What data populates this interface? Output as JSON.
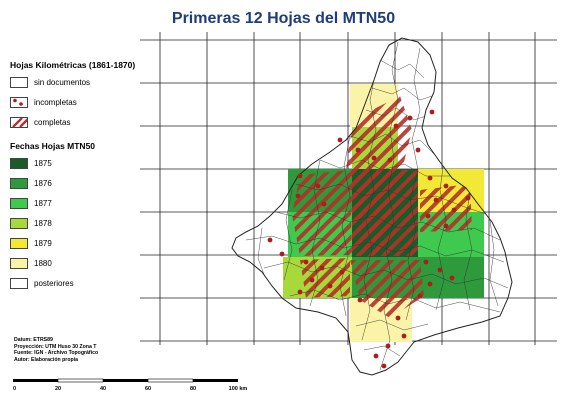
{
  "title": "Primeras 12 Hojas del MTN50",
  "legend_kilometricas": {
    "heading": "Hojas Kilométricas (1861-1870)",
    "items": [
      {
        "label": "sin documentos",
        "symbol": "empty"
      },
      {
        "label": "incompletas",
        "symbol": "dots"
      },
      {
        "label": "completas",
        "symbol": "hatch"
      }
    ]
  },
  "legend_fechas": {
    "heading": "Fechas Hojas MTN50",
    "items": [
      {
        "label": "1875",
        "color": "#1a5c28"
      },
      {
        "label": "1876",
        "color": "#2e9a3c"
      },
      {
        "label": "1877",
        "color": "#3fc94f"
      },
      {
        "label": "1878",
        "color": "#a8d93a"
      },
      {
        "label": "1879",
        "color": "#f2e836"
      },
      {
        "label": "1880",
        "color": "#fbf4a8"
      },
      {
        "label": "posteriores",
        "color": "#ffffff"
      }
    ]
  },
  "credits": [
    "Datum: ETRS89",
    "Proyección: UTM Huso 30 Zona T",
    "Fuente: IGN - Archivo Topográfico",
    "Autor: Elaboración propia"
  ],
  "scale_bar": {
    "ticks": [
      "0",
      "20",
      "40",
      "60",
      "80",
      "100 km"
    ]
  },
  "colors": {
    "hatch": "#b5302a",
    "dot": "#b01c1c",
    "grid": "#222222",
    "boundary": "#333333"
  }
}
